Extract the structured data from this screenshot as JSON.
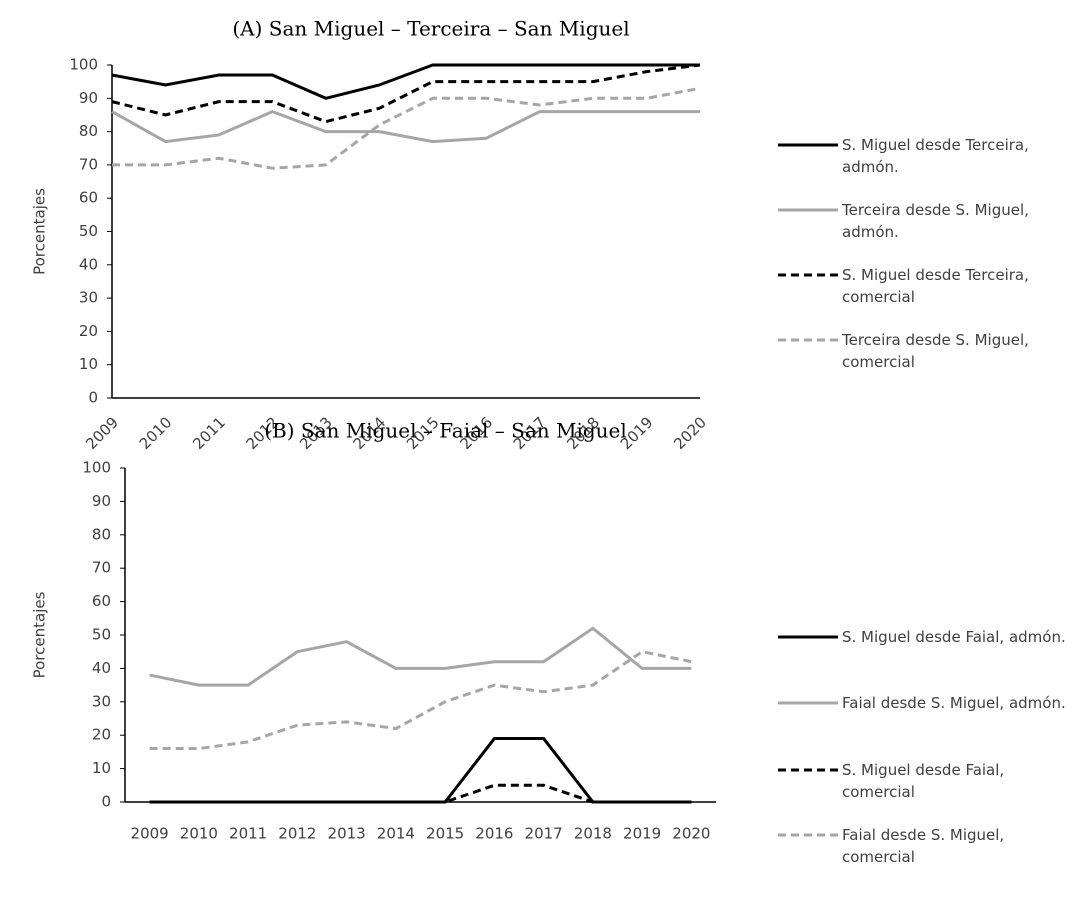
{
  "chart_data": [
    {
      "type": "line",
      "title": "(A) San Miguel – Terceira – San Miguel",
      "y_label": "Porcentajes",
      "categories": [
        "2009",
        "2010",
        "2011",
        "2012",
        "2013",
        "2014",
        "2015",
        "2016",
        "2017",
        "2018",
        "2019",
        "2020"
      ],
      "ylim": [
        0,
        100
      ],
      "yticks": [
        0,
        10,
        20,
        30,
        40,
        50,
        60,
        70,
        80,
        90,
        100
      ],
      "series": [
        {
          "name": "S. Miguel desde Terceira, admón.",
          "color": "#000000",
          "dash": false,
          "values": [
            97,
            94,
            97,
            97,
            90,
            94,
            100,
            100,
            100,
            100,
            100,
            100
          ]
        },
        {
          "name": "Terceira desde S. Miguel, admón.",
          "color": "#a6a6a6",
          "dash": false,
          "values": [
            86,
            77,
            79,
            86,
            80,
            80,
            77,
            78,
            86,
            86,
            86,
            86
          ]
        },
        {
          "name": "S. Miguel desde Terceira, comercial",
          "color": "#000000",
          "dash": true,
          "values": [
            89,
            85,
            89,
            89,
            83,
            87,
            95,
            95,
            95,
            95,
            98,
            100
          ]
        },
        {
          "name": "Terceira desde S. Miguel, comercial",
          "color": "#a6a6a6",
          "dash": true,
          "values": [
            70,
            70,
            72,
            69,
            70,
            82,
            90,
            90,
            88,
            90,
            90,
            93
          ]
        }
      ]
    },
    {
      "type": "line",
      "title": "(B) San Miguel – Faial – San Miguel",
      "y_label": "Porcentajes",
      "categories": [
        "2009",
        "2010",
        "2011",
        "2012",
        "2013",
        "2014",
        "2015",
        "2016",
        "2017",
        "2018",
        "2019",
        "2020"
      ],
      "ylim": [
        0,
        100
      ],
      "yticks": [
        0,
        10,
        20,
        30,
        40,
        50,
        60,
        70,
        80,
        90,
        100
      ],
      "series": [
        {
          "name": "S. Miguel desde Faial, admón.",
          "color": "#000000",
          "dash": false,
          "values": [
            0,
            0,
            0,
            0,
            0,
            0,
            0,
            19,
            19,
            0,
            0,
            0
          ]
        },
        {
          "name": "Faial desde S. Miguel, admón.",
          "color": "#a6a6a6",
          "dash": false,
          "values": [
            38,
            35,
            35,
            45,
            48,
            40,
            40,
            42,
            42,
            52,
            40,
            40
          ]
        },
        {
          "name": "S. Miguel desde Faial, comercial",
          "color": "#000000",
          "dash": true,
          "values": [
            0,
            0,
            0,
            0,
            0,
            0,
            0,
            5,
            5,
            0,
            0,
            0
          ]
        },
        {
          "name": "Faial desde S. Miguel, comercial",
          "color": "#a6a6a6",
          "dash": true,
          "values": [
            16,
            16,
            18,
            23,
            24,
            22,
            30,
            35,
            33,
            35,
            45,
            42
          ]
        }
      ]
    }
  ]
}
